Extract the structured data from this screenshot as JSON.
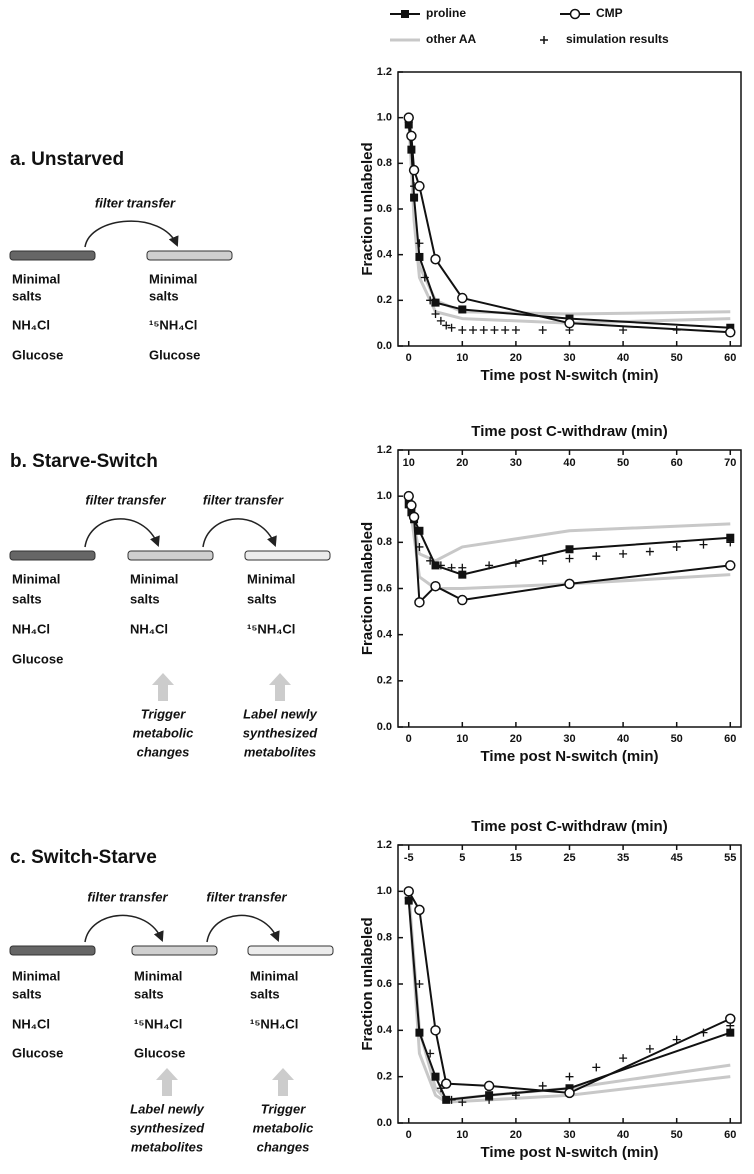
{
  "chart_data": [
    {
      "type": "line",
      "x_label": "Time post N-switch (min)",
      "y_label": "Fraction unlabeled",
      "xlim": [
        -2,
        62
      ],
      "xticks": [
        0,
        10,
        20,
        30,
        40,
        50,
        60
      ],
      "ylim": [
        0,
        1.2
      ],
      "yticks": [
        {
          "value": 0,
          "label": "0.0"
        },
        0.2,
        0.4,
        0.6,
        0.8,
        {
          "value": 1,
          "label": "1.0"
        },
        1.2
      ],
      "series": [
        {
          "name": "other AA",
          "color": "#c8c8c8",
          "marker": "none",
          "x": [
            0,
            1,
            2,
            5,
            10,
            30,
            60
          ],
          "values": [
            1.0,
            0.6,
            0.35,
            0.2,
            0.15,
            0.14,
            0.15
          ]
        },
        {
          "color": "#c8c8c8",
          "marker": "none",
          "x": [
            0,
            1,
            2,
            5,
            10,
            30,
            60
          ],
          "values": [
            1.0,
            0.55,
            0.3,
            0.15,
            0.12,
            0.1,
            0.12
          ]
        },
        {
          "name": "simulation results",
          "color": "#111111",
          "marker": "plus",
          "x": [
            0,
            1,
            2,
            3,
            4,
            5,
            6,
            7,
            8,
            10,
            12,
            14,
            16,
            18,
            20,
            25,
            30,
            40,
            50,
            60
          ],
          "values": [
            0.98,
            0.7,
            0.45,
            0.3,
            0.2,
            0.14,
            0.11,
            0.09,
            0.08,
            0.07,
            0.07,
            0.07,
            0.07,
            0.07,
            0.07,
            0.07,
            0.07,
            0.07,
            0.07,
            0.07
          ]
        },
        {
          "name": "proline",
          "color": "#111111",
          "marker": "square",
          "x": [
            0,
            0.5,
            1,
            2,
            5,
            10,
            30,
            60
          ],
          "values": [
            0.97,
            0.86,
            0.65,
            0.39,
            0.19,
            0.16,
            0.12,
            0.08
          ]
        },
        {
          "name": "CMP",
          "color": "#111111",
          "marker": "circle",
          "x": [
            0,
            0.5,
            1,
            2,
            5,
            10,
            30,
            60
          ],
          "values": [
            1.0,
            0.92,
            0.77,
            0.7,
            0.38,
            0.21,
            0.1,
            0.06
          ]
        }
      ]
    },
    {
      "type": "line",
      "x_label": "Time post N-switch (min)",
      "y_label": "Fraction unlabeled",
      "x2_label": "Time post C-withdraw (min)",
      "xlim": [
        -2,
        62
      ],
      "xticks": [
        0,
        10,
        20,
        30,
        40,
        50,
        60
      ],
      "x2lim": [
        8,
        72
      ],
      "x2ticks": [
        10,
        20,
        30,
        40,
        50,
        60,
        70
      ],
      "ylim": [
        0,
        1.2
      ],
      "yticks": [
        {
          "value": 0,
          "label": "0.0"
        },
        0.2,
        0.4,
        0.6,
        0.8,
        {
          "value": 1,
          "label": "1.0"
        },
        1.2
      ],
      "series": [
        {
          "color": "#c8c8c8",
          "marker": "none",
          "x": [
            0,
            2,
            5,
            10,
            30,
            60
          ],
          "values": [
            1.0,
            0.75,
            0.72,
            0.78,
            0.85,
            0.88
          ]
        },
        {
          "color": "#c8c8c8",
          "marker": "none",
          "x": [
            0,
            2,
            5,
            10,
            30,
            60
          ],
          "values": [
            1.0,
            0.65,
            0.6,
            0.6,
            0.62,
            0.66
          ]
        },
        {
          "color": "#111111",
          "marker": "plus",
          "x": [
            0,
            2,
            4,
            6,
            8,
            10,
            15,
            20,
            25,
            30,
            35,
            40,
            45,
            50,
            55,
            60
          ],
          "values": [
            0.95,
            0.78,
            0.72,
            0.7,
            0.69,
            0.69,
            0.7,
            0.71,
            0.72,
            0.73,
            0.74,
            0.75,
            0.76,
            0.78,
            0.79,
            0.8
          ]
        },
        {
          "color": "#111111",
          "marker": "square",
          "x": [
            0,
            0.5,
            1,
            2,
            5,
            10,
            30,
            60
          ],
          "values": [
            0.97,
            0.93,
            0.9,
            0.85,
            0.7,
            0.66,
            0.77,
            0.82
          ]
        },
        {
          "color": "#111111",
          "marker": "circle",
          "x": [
            0,
            0.5,
            1,
            2,
            5,
            10,
            30,
            60
          ],
          "values": [
            1.0,
            0.96,
            0.91,
            0.54,
            0.61,
            0.55,
            0.62,
            0.7
          ]
        }
      ]
    },
    {
      "type": "line",
      "x_label": "Time post N-switch (min)",
      "y_label": "Fraction unlabeled",
      "x2_label": "Time post C-withdraw (min)",
      "xlim": [
        -2,
        62
      ],
      "xticks": [
        0,
        10,
        20,
        30,
        40,
        50,
        60
      ],
      "x2lim": [
        -7,
        57
      ],
      "x2ticks": [
        -5,
        5,
        15,
        25,
        35,
        45,
        55
      ],
      "ylim": [
        0,
        1.2
      ],
      "yticks": [
        {
          "value": 0,
          "label": "0.0"
        },
        0.2,
        0.4,
        0.6,
        0.8,
        {
          "value": 1,
          "label": "1.0"
        },
        1.2
      ],
      "series": [
        {
          "color": "#c8c8c8",
          "marker": "none",
          "x": [
            0,
            2,
            5,
            7,
            15,
            30,
            60
          ],
          "values": [
            1.0,
            0.4,
            0.15,
            0.1,
            0.12,
            0.15,
            0.25
          ]
        },
        {
          "color": "#c8c8c8",
          "marker": "none",
          "x": [
            0,
            2,
            5,
            7,
            15,
            30,
            60
          ],
          "values": [
            1.0,
            0.3,
            0.12,
            0.09,
            0.1,
            0.12,
            0.2
          ]
        },
        {
          "color": "#111111",
          "marker": "plus",
          "x": [
            0,
            2,
            4,
            6,
            8,
            10,
            15,
            20,
            25,
            30,
            35,
            40,
            45,
            50,
            55,
            60
          ],
          "values": [
            0.97,
            0.6,
            0.3,
            0.15,
            0.1,
            0.09,
            0.1,
            0.12,
            0.16,
            0.2,
            0.24,
            0.28,
            0.32,
            0.36,
            0.39,
            0.42
          ]
        },
        {
          "color": "#111111",
          "marker": "square",
          "x": [
            0,
            2,
            5,
            7,
            15,
            30,
            60
          ],
          "values": [
            0.96,
            0.39,
            0.2,
            0.1,
            0.12,
            0.15,
            0.39
          ]
        },
        {
          "color": "#111111",
          "marker": "circle",
          "x": [
            0,
            2,
            5,
            7,
            15,
            30,
            60
          ],
          "values": [
            1.0,
            0.92,
            0.4,
            0.17,
            0.16,
            0.13,
            0.45
          ]
        }
      ]
    }
  ],
  "panels": [
    {
      "title": "a. Unstarved",
      "transfers": [
        "filter transfer"
      ],
      "dishes": [
        [
          "Minimal",
          "salts",
          "NH₄Cl",
          "Glucose"
        ],
        [
          "Minimal",
          "salts",
          "¹⁵NH₄Cl",
          "Glucose"
        ]
      ],
      "notes": []
    },
    {
      "title": "b. Starve-Switch",
      "transfers": [
        "filter transfer",
        "filter transfer"
      ],
      "dishes": [
        [
          "Minimal",
          "salts",
          "NH₄Cl",
          "Glucose"
        ],
        [
          "Minimal",
          "salts",
          "NH₄Cl"
        ],
        [
          "Minimal",
          "salts",
          "¹⁵NH₄Cl"
        ]
      ],
      "notes": [
        [
          "Trigger",
          "metabolic",
          "changes"
        ],
        [
          "Label newly",
          "synthesized",
          "metabolites"
        ]
      ]
    },
    {
      "title": "c. Switch-Starve",
      "transfers": [
        "filter transfer",
        "filter transfer"
      ],
      "dishes": [
        [
          "Minimal",
          "salts",
          "NH₄Cl",
          "Glucose"
        ],
        [
          "Minimal",
          "salts",
          "¹⁵NH₄Cl",
          "Glucose"
        ],
        [
          "Minimal",
          "salts",
          "¹⁵NH₄Cl"
        ]
      ],
      "notes": [
        [
          "Label newly",
          "synthesized",
          "metabolites"
        ],
        [
          "Trigger",
          "metabolic",
          "changes"
        ]
      ]
    }
  ]
}
